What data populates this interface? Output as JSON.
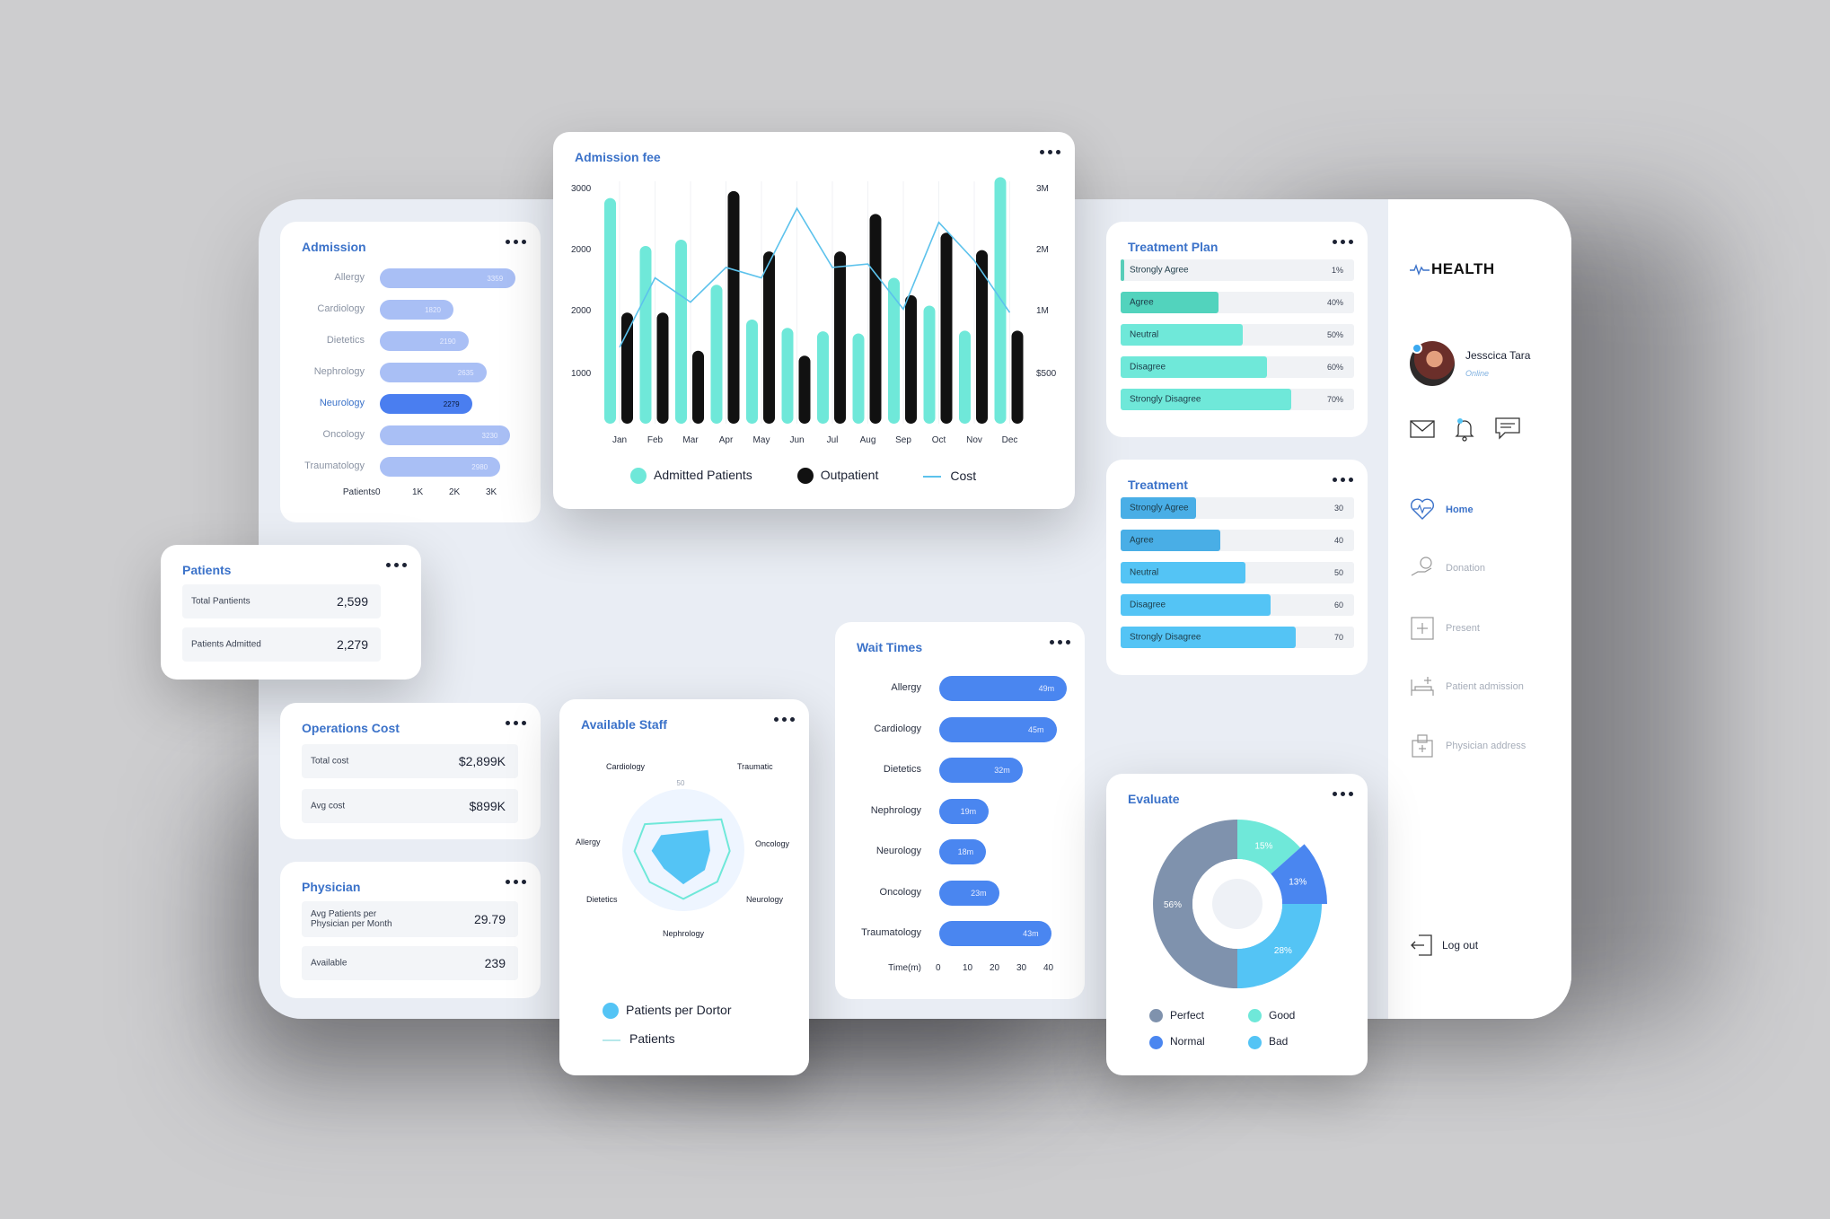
{
  "colors": {
    "accent": "#3b72c9",
    "teal": "#6fe8d9",
    "blue": "#4a86f0",
    "sky": "#54c4f5",
    "black": "#111111",
    "lavender": "#a9bff5"
  },
  "sidebar": {
    "brand": "HEALTH",
    "user": {
      "name": "Jesscica Tara",
      "status": "Online"
    },
    "items": [
      {
        "label": "Home",
        "icon": "heart-pulse-icon",
        "active": true
      },
      {
        "label": "Donation",
        "icon": "hand-coin-icon",
        "active": false
      },
      {
        "label": "Present",
        "icon": "hospital-board-icon",
        "active": false
      },
      {
        "label": "Patient admission",
        "icon": "bed-icon",
        "active": false
      },
      {
        "label": "Physician address",
        "icon": "clinic-icon",
        "active": false
      }
    ],
    "logout": "Log out"
  },
  "admission": {
    "title": "Admission",
    "rows": [
      {
        "label": "Allergy",
        "value": "3359",
        "v": 3359,
        "highlight": false
      },
      {
        "label": "Cardiology",
        "value": "1820",
        "v": 1820,
        "highlight": false
      },
      {
        "label": "Dietetics",
        "value": "2190",
        "v": 2190,
        "highlight": false
      },
      {
        "label": "Nephrology",
        "value": "2635",
        "v": 2635,
        "highlight": false
      },
      {
        "label": "Neurology",
        "value": "2279",
        "v": 2279,
        "highlight": true
      },
      {
        "label": "Oncology",
        "value": "3230",
        "v": 3230,
        "highlight": false
      },
      {
        "label": "Traumatology",
        "value": "2980",
        "v": 2980,
        "highlight": false
      }
    ],
    "axis_label": "Patients",
    "ticks": [
      "0",
      "1K",
      "2K",
      "3K"
    ]
  },
  "patients": {
    "title": "Patients",
    "rows": [
      {
        "label": "Total Pantients",
        "value": "2,599"
      },
      {
        "label": "Patients Admitted",
        "value": "2,279"
      }
    ]
  },
  "operations": {
    "title": "Operations Cost",
    "rows": [
      {
        "label": "Total cost",
        "value": "$2,899K"
      },
      {
        "label": "Avg cost",
        "value": "$899K"
      }
    ]
  },
  "physician": {
    "title": "Physician",
    "rows": [
      {
        "label": "Avg Patients per Physician per Month",
        "value": "29.79"
      },
      {
        "label": "Available",
        "value": "239"
      }
    ]
  },
  "admission_fee": {
    "title": "Admission fee",
    "left_ticks": [
      "3000",
      "2000",
      "2000",
      "1000"
    ],
    "right_ticks": [
      "3M",
      "2M",
      "1M",
      "$500"
    ],
    "legend": [
      {
        "label": "Admitted Patients"
      },
      {
        "label": "Outpatient"
      },
      {
        "label": "Cost"
      }
    ]
  },
  "staff": {
    "title": "Available Staff",
    "axes": [
      "Cardiology",
      "Traumatic",
      "Oncology",
      "Neurology",
      "Nephrology",
      "Dietetics",
      "Allergy"
    ],
    "scale": [
      "50",
      "40",
      "30",
      "20",
      "10",
      "0"
    ],
    "legend": [
      {
        "label": "Patients per Dortor"
      },
      {
        "label": "Patients"
      }
    ]
  },
  "wait": {
    "title": "Wait Times",
    "rows": [
      {
        "label": "Allergy",
        "value": "49m",
        "v": 49
      },
      {
        "label": "Cardiology",
        "value": "45m",
        "v": 45
      },
      {
        "label": "Dietetics",
        "value": "32m",
        "v": 32
      },
      {
        "label": "Nephrology",
        "value": "19m",
        "v": 19
      },
      {
        "label": "Neurology",
        "value": "18m",
        "v": 18
      },
      {
        "label": "Oncology",
        "value": "23m",
        "v": 23
      },
      {
        "label": "Traumatology",
        "value": "43m",
        "v": 43
      }
    ],
    "axis_label": "Time(m)",
    "ticks": [
      "0",
      "10",
      "20",
      "30",
      "40"
    ]
  },
  "treatment_plan": {
    "title": "Treatment Plan",
    "rows": [
      {
        "label": "Strongly Agree",
        "value": "1%",
        "pct": 1
      },
      {
        "label": "Agree",
        "value": "40%",
        "pct": 40
      },
      {
        "label": "Neutral",
        "value": "50%",
        "pct": 50
      },
      {
        "label": "Disagree",
        "value": "60%",
        "pct": 60
      },
      {
        "label": "Strongly Disagree",
        "value": "70%",
        "pct": 70
      }
    ]
  },
  "treatment": {
    "title": "Treatment",
    "rows": [
      {
        "label": "Strongly Agree",
        "value": "30",
        "v": 30
      },
      {
        "label": "Agree",
        "value": "40",
        "v": 40
      },
      {
        "label": "Neutral",
        "value": "50",
        "v": 50
      },
      {
        "label": "Disagree",
        "value": "60",
        "v": 60
      },
      {
        "label": "Strongly Disagree",
        "value": "70",
        "v": 70
      }
    ]
  },
  "evaluate": {
    "title": "Evaluate",
    "legend": [
      {
        "label": "Perfect"
      },
      {
        "label": "Good"
      },
      {
        "label": "Normal"
      },
      {
        "label": "Bad"
      }
    ]
  },
  "chart_data": [
    {
      "type": "bar",
      "title": "Admission fee",
      "categories": [
        "Jan",
        "Feb",
        "Mar",
        "Apr",
        "May",
        "Jun",
        "Jul",
        "Aug",
        "Sep",
        "Oct",
        "Nov",
        "Dec"
      ],
      "series": [
        {
          "name": "Admitted Patients",
          "values": [
            3250,
            2560,
            2650,
            2000,
            1500,
            1380,
            1330,
            1300,
            2100,
            1700,
            1340,
            3550
          ]
        },
        {
          "name": "Outpatient",
          "values": [
            1600,
            1600,
            1050,
            3350,
            2480,
            980,
            2480,
            3020,
            1850,
            2750,
            2500,
            1340
          ]
        },
        {
          "name": "Cost",
          "values": [
            1100,
            2100,
            1750,
            2250,
            2100,
            3100,
            2250,
            2300,
            1650,
            2900,
            2350,
            1600
          ]
        }
      ],
      "ylim": [
        0,
        3400
      ]
    },
    {
      "type": "radar",
      "title": "Available Staff",
      "axes": [
        "Cardiology",
        "Traumatic",
        "Oncology",
        "Neurology",
        "Nephrology",
        "Dietetics",
        "Allergy"
      ],
      "series": [
        {
          "name": "Patients per Dortor",
          "values": [
            22,
            26,
            22,
            24,
            28,
            22,
            26
          ]
        },
        {
          "name": "Patients",
          "values": [
            38,
            40,
            38,
            38,
            40,
            38,
            40
          ]
        }
      ],
      "range": [
        0,
        50
      ]
    },
    {
      "type": "pie",
      "title": "Evaluate",
      "labels": [
        "Good",
        "Normal",
        "Bad",
        "Perfect"
      ],
      "values": [
        15,
        13,
        28,
        56
      ],
      "value_labels": [
        "15%",
        "13%",
        "28%",
        "56%"
      ]
    }
  ]
}
